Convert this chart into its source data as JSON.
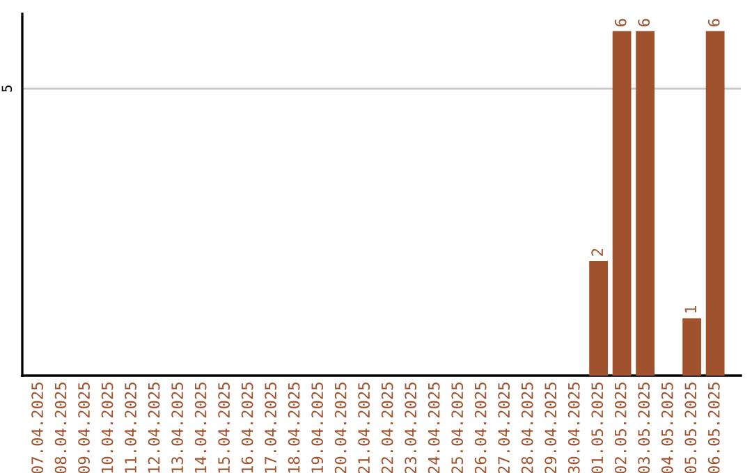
{
  "chart_data": {
    "type": "bar",
    "categories": [
      "07.04.2025",
      "08.04.2025",
      "09.04.2025",
      "10.04.2025",
      "11.04.2025",
      "12.04.2025",
      "13.04.2025",
      "14.04.2025",
      "15.04.2025",
      "16.04.2025",
      "17.04.2025",
      "18.04.2025",
      "19.04.2025",
      "20.04.2025",
      "21.04.2025",
      "22.04.2025",
      "23.04.2025",
      "24.04.2025",
      "25.04.2025",
      "26.04.2025",
      "27.04.2025",
      "28.04.2025",
      "29.04.2025",
      "30.04.2025",
      "01.05.2025",
      "02.05.2025",
      "03.05.2025",
      "04.05.2025",
      "05.05.2025",
      "06.05.2025"
    ],
    "values": [
      null,
      null,
      null,
      null,
      null,
      null,
      null,
      null,
      null,
      null,
      null,
      null,
      null,
      null,
      null,
      null,
      null,
      null,
      null,
      null,
      null,
      null,
      null,
      null,
      2,
      6,
      6,
      null,
      1,
      6
    ],
    "value_labels": [
      null,
      null,
      null,
      null,
      null,
      null,
      null,
      null,
      null,
      null,
      null,
      null,
      null,
      null,
      null,
      null,
      null,
      null,
      null,
      null,
      null,
      null,
      null,
      null,
      "2",
      "6",
      "6",
      null,
      "1",
      "6"
    ],
    "color": "#a0522d",
    "ref_lines": [
      {
        "axis": "y",
        "value": 5,
        "label": "5",
        "color": "#c8c8c8"
      }
    ]
  }
}
